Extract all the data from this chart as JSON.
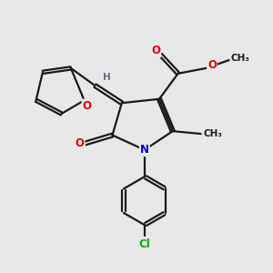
{
  "bg_color": "#e8e8e8",
  "bond_color": "#1a1a1a",
  "bond_width": 1.6,
  "atom_colors": {
    "O": "#dd0000",
    "N": "#0000cc",
    "Cl": "#00aa00",
    "C": "#1a1a1a",
    "H": "#607080"
  },
  "font_size": 8.5,
  "fig_size": [
    3.0,
    3.0
  ],
  "dpi": 100
}
